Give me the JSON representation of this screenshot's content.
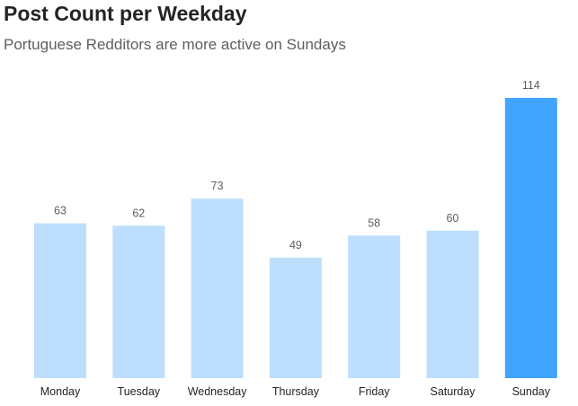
{
  "chart_data": {
    "type": "bar",
    "title": "Post Count per Weekday",
    "subtitle": "Portuguese Redditors are more active on Sundays",
    "categories": [
      "Monday",
      "Tuesday",
      "Wednesday",
      "Thursday",
      "Friday",
      "Saturday",
      "Sunday"
    ],
    "values": [
      63,
      62,
      73,
      49,
      58,
      60,
      114
    ],
    "data_labels": [
      "63",
      "62",
      "73",
      "49",
      "58",
      "60",
      "114"
    ],
    "highlight_category": "Sunday",
    "ylim": [
      0,
      114
    ],
    "grid": false,
    "legend": "none",
    "colors": {
      "bar": "#bddffd",
      "highlight": "#41a5ff",
      "data_label": "#605e5c",
      "tick_label": "#252423"
    }
  }
}
